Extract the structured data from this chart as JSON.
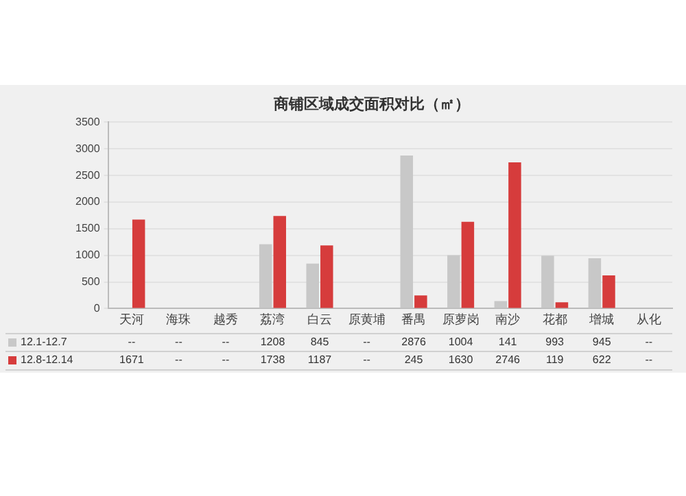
{
  "chart_data": {
    "type": "bar",
    "title": "商铺区域成交面积对比（㎡）",
    "categories": [
      "天河",
      "海珠",
      "越秀",
      "荔湾",
      "白云",
      "原黄埔",
      "番禺",
      "原萝岗",
      "南沙",
      "花都",
      "增城",
      "从化"
    ],
    "series": [
      {
        "name": "12.1-12.7",
        "color": "#c8c8c8",
        "values": [
          null,
          null,
          null,
          1208,
          845,
          null,
          2876,
          1004,
          141,
          993,
          945,
          null
        ],
        "value_labels": [
          "--",
          "--",
          "--",
          "1208",
          "845",
          "--",
          "2876",
          "1004",
          "141",
          "993",
          "945",
          "--"
        ]
      },
      {
        "name": "12.8-12.14",
        "color": "#d63c3c",
        "values": [
          1671,
          null,
          null,
          1738,
          1187,
          null,
          245,
          1630,
          2746,
          119,
          622,
          null
        ],
        "value_labels": [
          "1671",
          "--",
          "--",
          "1738",
          "1187",
          "--",
          "245",
          "1630",
          "2746",
          "119",
          "622",
          "--"
        ]
      }
    ],
    "ylim": [
      0,
      3500
    ],
    "yticks": [
      0,
      500,
      1000,
      1500,
      2000,
      2500,
      3000,
      3500
    ],
    "grid": "y",
    "legend": "bottom"
  }
}
